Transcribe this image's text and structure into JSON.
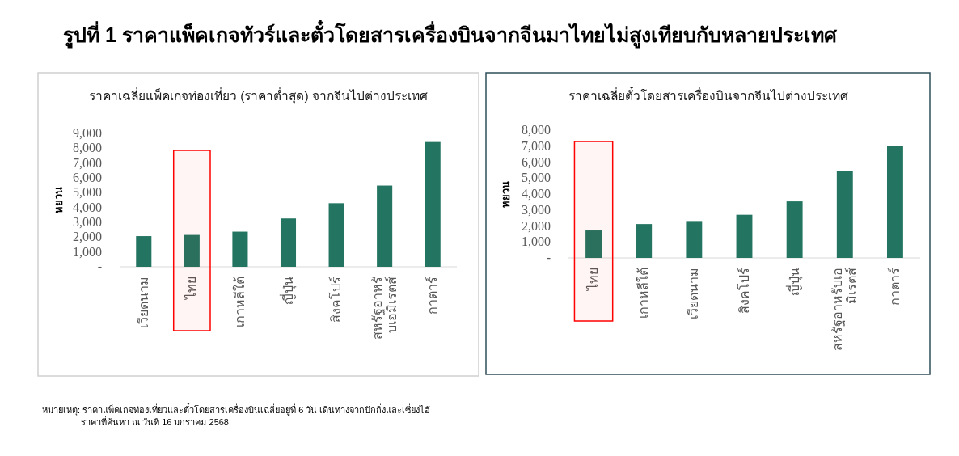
{
  "chart_data": [
    {
      "type": "other",
      "title": "รูปที่ 1 ราคาแพ็คเกจทัวร์และตั๋วโดยสารเครื่องบินจากจีนมาไทยไม่สูงเทียบกับหลายประเทศ",
      "annotations": [
        "หมายเหตุ: ราคาแพ็คเกจท่องเที่ยวและตั๋วโดยสารเครื่องบินเฉลี่ยอยู่ที่ 6 วัน  เดินทางจากปักกิ่งและเซี่ยงไฮ้",
        "ราคาที่ค้นหา ณ วันที่ 16 มกราคม 2568"
      ]
    },
    {
      "type": "bar",
      "title": "ราคาเฉลี่ยแพ็คเกจท่องเที่ยว (ราคาต่ำสุด) จากจีนไปต่างประเทศ",
      "ylabel": "หยวน",
      "categories": [
        "เวียดนาม",
        "ไทย",
        "เกาหลีใต้",
        "ญี่ปุ่น",
        "สิงคโปร์",
        "สหรัฐอาหรับเอมิเรตส์",
        "กาตาร์"
      ],
      "values": [
        2070,
        2150,
        2370,
        3260,
        4290,
        5480,
        8420
      ],
      "color": "#237561",
      "bands": [
        {
          "axis": "x",
          "from": "ไทย",
          "to": "ไทย",
          "color": "#ff0000"
        }
      ],
      "ylim": [
        0,
        9000
      ],
      "yticks": [
        {
          "value": 0,
          "label": "-"
        },
        {
          "value": 1000,
          "label": "1,000"
        },
        {
          "value": 2000,
          "label": "2,000"
        },
        {
          "value": 3000,
          "label": "3,000"
        },
        {
          "value": 4000,
          "label": "4,000"
        },
        {
          "value": 5000,
          "label": "5,000"
        },
        {
          "value": 6000,
          "label": "6,000"
        },
        {
          "value": 7000,
          "label": "7,000"
        },
        {
          "value": 8000,
          "label": "8,000"
        },
        {
          "value": 9000,
          "label": "9,000"
        }
      ],
      "grid": false
    },
    {
      "type": "bar",
      "title": "ราคาเฉลี่ยตั๋วโดยสารเครื่องบินจากจีนไปต่างประเทศ",
      "ylabel": "หยวน",
      "categories": [
        "ไทย",
        "เกาหลีใต้",
        "เวียดนาม",
        "สิงคโปร์",
        "ญี่ปุ่น",
        "สหรัฐอาหรับเอมิเรตส์",
        "กาตาร์"
      ],
      "values": [
        1720,
        2120,
        2310,
        2700,
        3540,
        5420,
        7020
      ],
      "color": "#237561",
      "bands": [
        {
          "axis": "x",
          "from": "ไทย",
          "to": "ไทย",
          "color": "#ff0000"
        }
      ],
      "ylim": [
        0,
        8000
      ],
      "yticks": [
        {
          "value": 0,
          "label": "-"
        },
        {
          "value": 1000,
          "label": "1,000"
        },
        {
          "value": 2000,
          "label": "2,000"
        },
        {
          "value": 3000,
          "label": "3,000"
        },
        {
          "value": 4000,
          "label": "4,000"
        },
        {
          "value": 5000,
          "label": "5,000"
        },
        {
          "value": 6000,
          "label": "6,000"
        },
        {
          "value": 7000,
          "label": "7,000"
        },
        {
          "value": 8000,
          "label": "8,000"
        }
      ],
      "grid": false
    }
  ]
}
